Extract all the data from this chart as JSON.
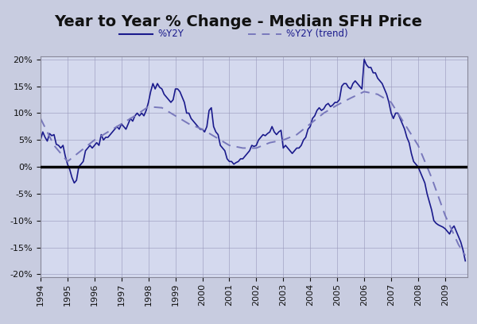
{
  "title": "Year to Year % Change - Median SFH Price",
  "legend_solid": "%Y2Y",
  "legend_dashed": "%Y2Y (trend)",
  "xlim_start": 1994.0,
  "xlim_end": 2009.83,
  "ylim": [
    -0.205,
    0.205
  ],
  "yticks": [
    -0.2,
    -0.15,
    -0.1,
    -0.05,
    0.0,
    0.05,
    0.1,
    0.15,
    0.2
  ],
  "background_outer": "#c8cce0",
  "background_inner": "#d4d9ee",
  "line_color": "#1a1a8c",
  "trend_color": "#7878bb",
  "zero_line_color": "#000000",
  "title_fontsize": 14,
  "y2y_x": [
    1994.0,
    1994.083,
    1994.167,
    1994.25,
    1994.333,
    1994.417,
    1994.5,
    1994.583,
    1994.667,
    1994.75,
    1994.833,
    1994.917,
    1995.0,
    1995.083,
    1995.167,
    1995.25,
    1995.333,
    1995.417,
    1995.5,
    1995.583,
    1995.667,
    1995.75,
    1995.833,
    1995.917,
    1996.0,
    1996.083,
    1996.167,
    1996.25,
    1996.333,
    1996.417,
    1996.5,
    1996.583,
    1996.667,
    1996.75,
    1996.833,
    1996.917,
    1997.0,
    1997.083,
    1997.167,
    1997.25,
    1997.333,
    1997.417,
    1997.5,
    1997.583,
    1997.667,
    1997.75,
    1997.833,
    1997.917,
    1998.0,
    1998.083,
    1998.167,
    1998.25,
    1998.333,
    1998.417,
    1998.5,
    1998.583,
    1998.667,
    1998.75,
    1998.833,
    1998.917,
    1999.0,
    1999.083,
    1999.167,
    1999.25,
    1999.333,
    1999.417,
    1999.5,
    1999.583,
    1999.667,
    1999.75,
    1999.833,
    1999.917,
    2000.0,
    2000.083,
    2000.167,
    2000.25,
    2000.333,
    2000.417,
    2000.5,
    2000.583,
    2000.667,
    2000.75,
    2000.833,
    2000.917,
    2001.0,
    2001.083,
    2001.167,
    2001.25,
    2001.333,
    2001.417,
    2001.5,
    2001.583,
    2001.667,
    2001.75,
    2001.833,
    2001.917,
    2002.0,
    2002.083,
    2002.167,
    2002.25,
    2002.333,
    2002.417,
    2002.5,
    2002.583,
    2002.667,
    2002.75,
    2002.833,
    2002.917,
    2003.0,
    2003.083,
    2003.167,
    2003.25,
    2003.333,
    2003.417,
    2003.5,
    2003.583,
    2003.667,
    2003.75,
    2003.833,
    2003.917,
    2004.0,
    2004.083,
    2004.167,
    2004.25,
    2004.333,
    2004.417,
    2004.5,
    2004.583,
    2004.667,
    2004.75,
    2004.833,
    2004.917,
    2005.0,
    2005.083,
    2005.167,
    2005.25,
    2005.333,
    2005.417,
    2005.5,
    2005.583,
    2005.667,
    2005.75,
    2005.833,
    2005.917,
    2006.0,
    2006.083,
    2006.167,
    2006.25,
    2006.333,
    2006.417,
    2006.5,
    2006.583,
    2006.667,
    2006.75,
    2006.833,
    2006.917,
    2007.0,
    2007.083,
    2007.167,
    2007.25,
    2007.333,
    2007.417,
    2007.5,
    2007.583,
    2007.667,
    2007.75,
    2007.833,
    2007.917,
    2008.0,
    2008.083,
    2008.167,
    2008.25,
    2008.333,
    2008.417,
    2008.5,
    2008.583,
    2008.667,
    2008.75,
    2008.833,
    2008.917,
    2009.0,
    2009.083,
    2009.167,
    2009.25,
    2009.333,
    2009.417,
    2009.5,
    2009.583,
    2009.667,
    2009.75
  ],
  "y2y_y": [
    0.05,
    0.065,
    0.055,
    0.048,
    0.062,
    0.058,
    0.06,
    0.042,
    0.04,
    0.035,
    0.04,
    0.02,
    0.005,
    -0.005,
    -0.02,
    -0.03,
    -0.025,
    0.0,
    0.005,
    0.01,
    0.03,
    0.035,
    0.04,
    0.035,
    0.04,
    0.045,
    0.04,
    0.06,
    0.05,
    0.055,
    0.055,
    0.06,
    0.065,
    0.07,
    0.075,
    0.07,
    0.08,
    0.075,
    0.07,
    0.08,
    0.09,
    0.085,
    0.095,
    0.1,
    0.095,
    0.1,
    0.095,
    0.105,
    0.12,
    0.14,
    0.155,
    0.145,
    0.155,
    0.148,
    0.145,
    0.135,
    0.13,
    0.125,
    0.12,
    0.125,
    0.145,
    0.145,
    0.14,
    0.13,
    0.12,
    0.1,
    0.1,
    0.09,
    0.085,
    0.08,
    0.075,
    0.07,
    0.07,
    0.065,
    0.075,
    0.105,
    0.11,
    0.075,
    0.065,
    0.06,
    0.04,
    0.035,
    0.03,
    0.015,
    0.01,
    0.01,
    0.005,
    0.008,
    0.01,
    0.015,
    0.015,
    0.02,
    0.025,
    0.03,
    0.04,
    0.038,
    0.04,
    0.05,
    0.055,
    0.06,
    0.058,
    0.062,
    0.065,
    0.075,
    0.065,
    0.06,
    0.065,
    0.068,
    0.035,
    0.04,
    0.035,
    0.03,
    0.025,
    0.03,
    0.035,
    0.035,
    0.04,
    0.05,
    0.055,
    0.07,
    0.075,
    0.09,
    0.095,
    0.105,
    0.11,
    0.105,
    0.108,
    0.115,
    0.118,
    0.112,
    0.115,
    0.12,
    0.12,
    0.125,
    0.15,
    0.155,
    0.155,
    0.148,
    0.145,
    0.155,
    0.16,
    0.155,
    0.15,
    0.145,
    0.2,
    0.19,
    0.185,
    0.185,
    0.175,
    0.175,
    0.165,
    0.16,
    0.155,
    0.145,
    0.135,
    0.12,
    0.1,
    0.09,
    0.1,
    0.1,
    0.09,
    0.08,
    0.07,
    0.055,
    0.045,
    0.025,
    0.01,
    0.005,
    0.0,
    -0.01,
    -0.02,
    -0.03,
    -0.05,
    -0.065,
    -0.08,
    -0.1,
    -0.105,
    -0.108,
    -0.11,
    -0.112,
    -0.115,
    -0.12,
    -0.125,
    -0.115,
    -0.11,
    -0.12,
    -0.13,
    -0.14,
    -0.155,
    -0.175
  ],
  "trend_x": [
    1994.0,
    1994.5,
    1995.0,
    1995.5,
    1996.0,
    1996.5,
    1997.0,
    1997.5,
    1998.0,
    1998.5,
    1999.0,
    1999.5,
    2000.0,
    2000.5,
    2001.0,
    2001.5,
    2002.0,
    2002.5,
    2003.0,
    2003.5,
    2004.0,
    2004.5,
    2005.0,
    2005.5,
    2006.0,
    2006.5,
    2007.0,
    2007.5,
    2008.0,
    2008.5,
    2009.0,
    2009.5,
    2009.75
  ],
  "trend_y": [
    0.09,
    0.04,
    0.01,
    0.03,
    0.05,
    0.065,
    0.08,
    0.095,
    0.112,
    0.11,
    0.095,
    0.08,
    0.07,
    0.055,
    0.04,
    0.035,
    0.035,
    0.045,
    0.05,
    0.06,
    0.08,
    0.1,
    0.115,
    0.128,
    0.14,
    0.135,
    0.12,
    0.08,
    0.04,
    -0.02,
    -0.09,
    -0.145,
    -0.165
  ]
}
